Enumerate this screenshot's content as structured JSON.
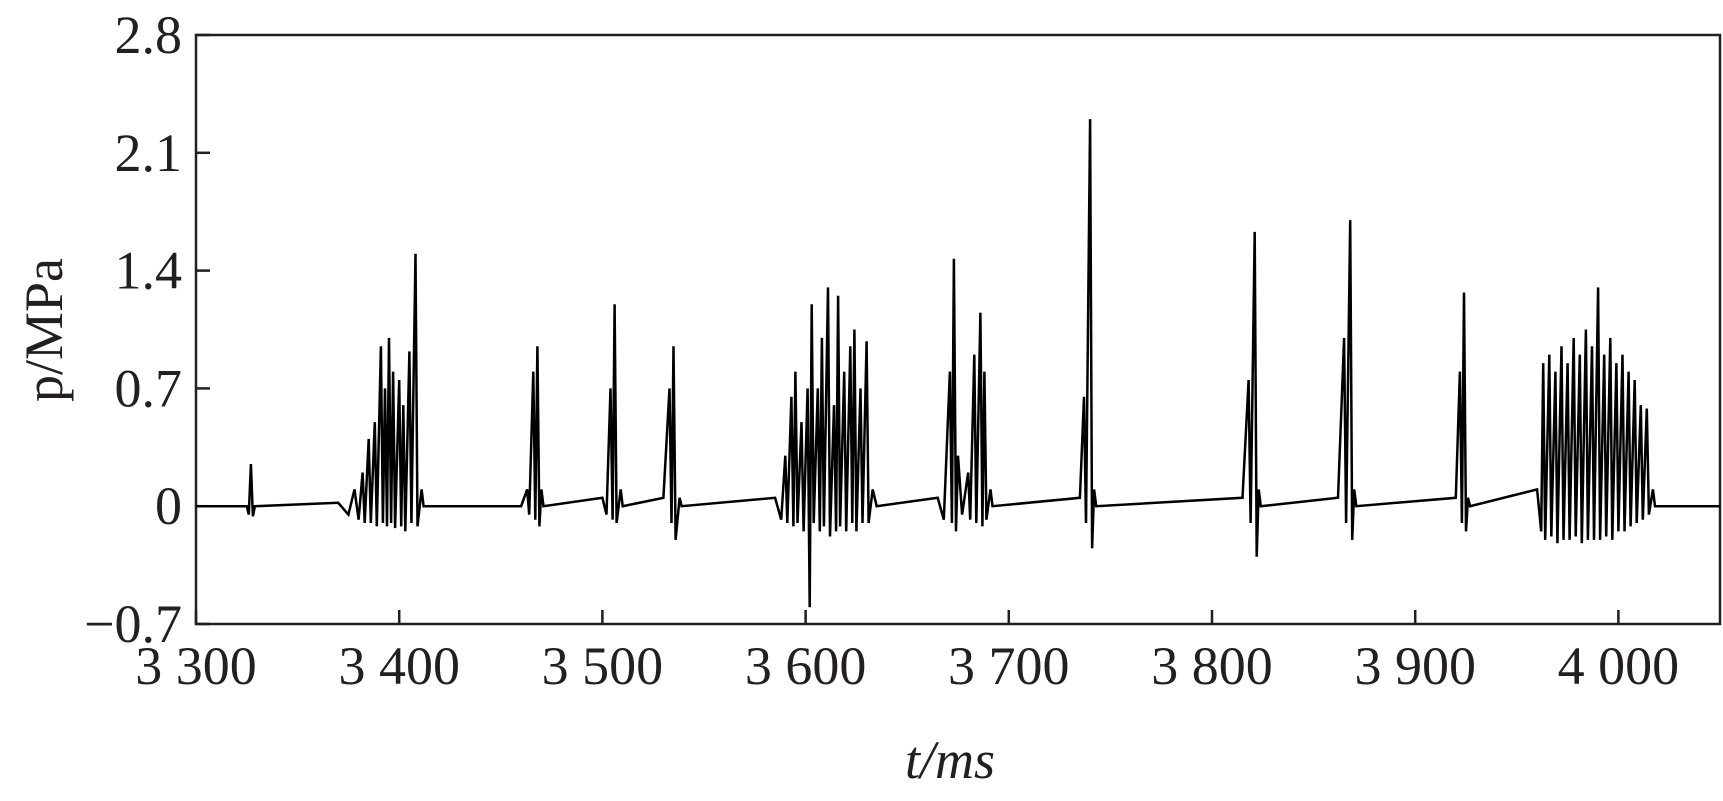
{
  "chart_data": {
    "type": "line",
    "xlabel": "t/ms",
    "ylabel": "p/MPa",
    "color": "#000000",
    "xlim": [
      3300,
      4050
    ],
    "ylim": [
      -0.7,
      2.8
    ],
    "xticks": [
      {
        "value": 3300,
        "label": "3 300"
      },
      {
        "value": 3400,
        "label": "3 400"
      },
      {
        "value": 3500,
        "label": "3 500"
      },
      {
        "value": 3600,
        "label": "3 600"
      },
      {
        "value": 3700,
        "label": "3 700"
      },
      {
        "value": 3800,
        "label": "3 800"
      },
      {
        "value": 3900,
        "label": "3 900"
      },
      {
        "value": 4000,
        "label": "4 000"
      }
    ],
    "yticks": [
      {
        "value": -0.7,
        "label": "−0.7"
      },
      0,
      0.7,
      1.4,
      2.1,
      2.8
    ],
    "x": [
      3300,
      3325,
      3326,
      3327,
      3328,
      3329,
      3370,
      3375,
      3378,
      3380,
      3382,
      3383,
      3385,
      3386,
      3388,
      3389,
      3391,
      3392,
      3393,
      3394,
      3395,
      3396,
      3397,
      3398,
      3400,
      3401,
      3402,
      3403,
      3405,
      3406,
      3408,
      3409,
      3411,
      3412,
      3460,
      3463,
      3464,
      3466,
      3467,
      3468,
      3469,
      3470,
      3471,
      3500,
      3502,
      3504,
      3505,
      3506,
      3507,
      3509,
      3510,
      3530,
      3533,
      3534,
      3535,
      3536,
      3538,
      3539,
      3585,
      3588,
      3590,
      3591,
      3593,
      3594,
      3595,
      3596,
      3598,
      3599,
      3601,
      3602,
      3603,
      3604,
      3606,
      3607,
      3608,
      3609,
      3611,
      3612,
      3614,
      3615,
      3616,
      3617,
      3619,
      3620,
      3622,
      3623,
      3624,
      3625,
      3627,
      3628,
      3630,
      3631,
      3633,
      3635,
      3665,
      3668,
      3671,
      3672,
      3673,
      3674,
      3675,
      3677,
      3680,
      3681,
      3683,
      3684,
      3686,
      3687,
      3688,
      3689,
      3691,
      3692,
      3735,
      3737,
      3738,
      3740,
      3741,
      3742,
      3743,
      3815,
      3818,
      3819,
      3821,
      3822,
      3823,
      3824,
      3862,
      3865,
      3866,
      3868,
      3869,
      3870,
      3871,
      3920,
      3922,
      3923,
      3924,
      3925,
      3926,
      3927,
      3960,
      3962,
      3963,
      3964,
      3966,
      3967,
      3969,
      3970,
      3972,
      3973,
      3975,
      3976,
      3978,
      3979,
      3981,
      3982,
      3984,
      3985,
      3987,
      3988,
      3990,
      3991,
      3993,
      3994,
      3996,
      3997,
      3999,
      4000,
      4002,
      4003,
      4005,
      4006,
      4008,
      4009,
      4011,
      4012,
      4014,
      4015,
      4017,
      4018,
      4050
    ],
    "values": [
      0,
      0,
      -0.05,
      0.25,
      -0.06,
      0,
      0.02,
      -0.05,
      0.1,
      -0.08,
      0.2,
      -0.1,
      0.4,
      -0.1,
      0.5,
      -0.12,
      0.95,
      -0.1,
      0.7,
      -0.12,
      1.0,
      -0.1,
      0.8,
      -0.13,
      0.75,
      -0.12,
      0.6,
      -0.15,
      0.92,
      -0.1,
      1.5,
      -0.12,
      0.1,
      0,
      0,
      0.1,
      -0.05,
      0.8,
      -0.08,
      0.95,
      -0.12,
      0.1,
      0,
      0.05,
      -0.05,
      0.7,
      -0.08,
      1.2,
      -0.1,
      0.1,
      0,
      0.05,
      0.7,
      -0.1,
      0.95,
      -0.2,
      0.05,
      0,
      0.05,
      -0.08,
      0.3,
      -0.1,
      0.65,
      -0.12,
      0.8,
      -0.1,
      0.5,
      -0.15,
      0.7,
      -0.6,
      1.2,
      -0.1,
      0.7,
      -0.15,
      1.0,
      -0.12,
      1.3,
      -0.18,
      0.6,
      -0.15,
      1.25,
      -0.12,
      0.8,
      -0.15,
      0.95,
      -0.1,
      1.05,
      -0.15,
      0.7,
      -0.1,
      0.98,
      -0.1,
      0.1,
      0,
      0.05,
      -0.08,
      0.8,
      -0.1,
      1.47,
      -0.15,
      0.3,
      -0.05,
      0.2,
      -0.08,
      0.9,
      -0.1,
      1.15,
      -0.12,
      0.8,
      -0.08,
      0.1,
      0,
      0.05,
      0.65,
      -0.1,
      2.3,
      -0.25,
      0.1,
      0,
      0.05,
      0.75,
      -0.1,
      1.63,
      -0.3,
      0.1,
      0,
      0.05,
      1.0,
      -0.1,
      1.7,
      -0.2,
      0.1,
      0,
      0.05,
      0.8,
      -0.1,
      1.27,
      -0.15,
      0.05,
      0,
      0.1,
      -0.15,
      0.85,
      -0.2,
      0.9,
      -0.18,
      0.8,
      -0.22,
      0.95,
      -0.2,
      0.85,
      -0.2,
      1.0,
      -0.18,
      0.9,
      -0.22,
      1.05,
      -0.2,
      0.95,
      -0.2,
      1.3,
      -0.2,
      0.9,
      -0.18,
      1.0,
      -0.2,
      0.85,
      -0.15,
      0.9,
      -0.15,
      0.8,
      -0.12,
      0.75,
      -0.1,
      0.6,
      -0.08,
      0.58,
      -0.05,
      0.1,
      0,
      0
    ]
  }
}
